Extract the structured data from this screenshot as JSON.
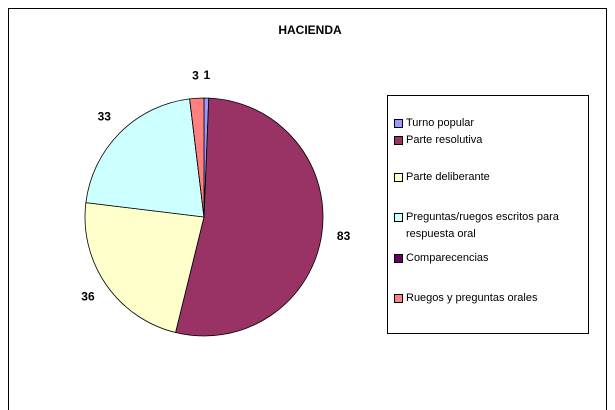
{
  "chart_data": {
    "type": "pie",
    "title": "HACIENDA",
    "categories": [
      "Turno popular",
      "Parte resolutiva",
      "Parte deliberante",
      "Preguntas/ruegos escritos para respuesta oral",
      "Comparecencias",
      "Ruegos y preguntas orales"
    ],
    "values": [
      1,
      83,
      36,
      33,
      0,
      3
    ],
    "colors": [
      "#9999ff",
      "#993366",
      "#ffffcc",
      "#ccffff",
      "#660066",
      "#ff8080"
    ],
    "legend": "right"
  }
}
